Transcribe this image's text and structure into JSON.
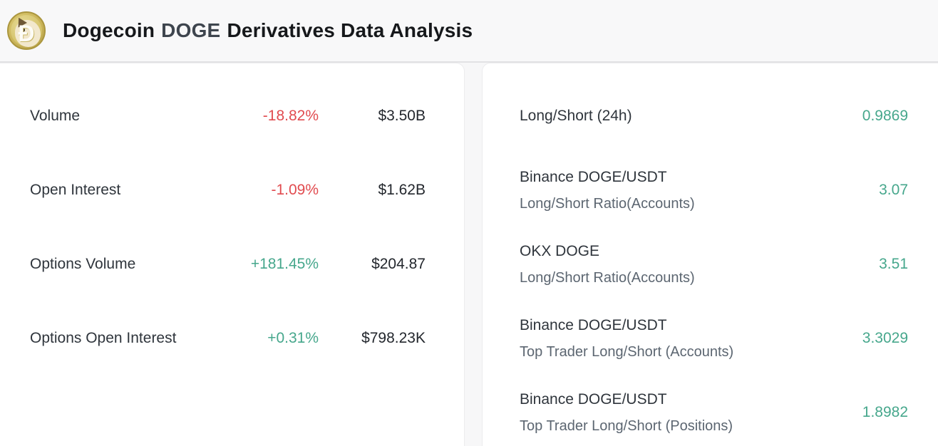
{
  "header": {
    "logo_letter": "Ð",
    "title": {
      "coin_name": "Dogecoin",
      "ticker": "DOGE",
      "suffix": "Derivatives Data Analysis"
    }
  },
  "colors": {
    "negative": "#e14b4f",
    "positive": "#46a78c",
    "coin_gold": "#c9b358"
  },
  "derivatives_panel": {
    "rows": [
      {
        "label": "Volume",
        "change": "-18.82%",
        "direction": "down",
        "value": "$3.50B"
      },
      {
        "label": "Open Interest",
        "change": "-1.09%",
        "direction": "down",
        "value": "$1.62B"
      },
      {
        "label": "Options Volume",
        "change": "+181.45%",
        "direction": "up",
        "value": "$204.87"
      },
      {
        "label": "Options Open Interest",
        "change": "+0.31%",
        "direction": "up",
        "value": "$798.23K"
      }
    ]
  },
  "long_short_panel": {
    "rows": [
      {
        "title": "Long/Short (24h)",
        "subtitle": "",
        "value": "0.9869"
      },
      {
        "title": "Binance DOGE/USDT",
        "subtitle": "Long/Short Ratio(Accounts)",
        "value": "3.07"
      },
      {
        "title": "OKX DOGE",
        "subtitle": "Long/Short Ratio(Accounts)",
        "value": "3.51"
      },
      {
        "title": "Binance DOGE/USDT",
        "subtitle": "Top Trader Long/Short (Accounts)",
        "value": "3.3029"
      },
      {
        "title": "Binance DOGE/USDT",
        "subtitle": "Top Trader Long/Short (Positions)",
        "value": "1.8982"
      }
    ]
  }
}
